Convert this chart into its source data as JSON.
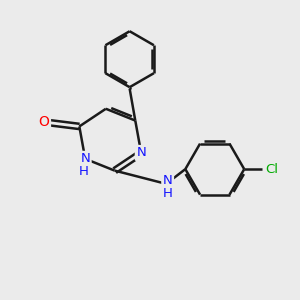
{
  "bg_color": "#ebebeb",
  "bond_color": "#1a1a1a",
  "bond_width": 1.8,
  "atom_colors": {
    "N": "#1414ff",
    "O": "#ff0000",
    "Cl": "#00aa00",
    "C": "#1a1a1a"
  },
  "font_size": 9.5
}
